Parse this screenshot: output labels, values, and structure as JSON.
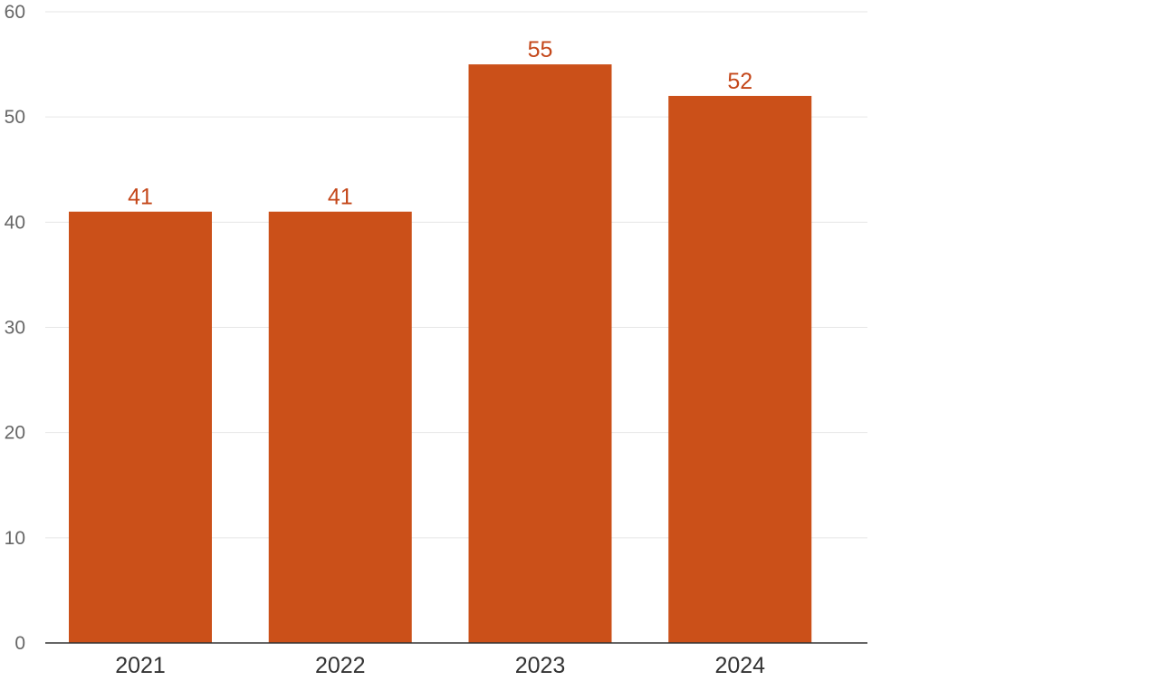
{
  "chart_data": {
    "type": "bar",
    "title": "",
    "xlabel": "",
    "ylabel": "",
    "categories": [
      "2021",
      "2022",
      "2023",
      "2024"
    ],
    "values": [
      41,
      41,
      55,
      52
    ],
    "data_labels": [
      "41",
      "41",
      "55",
      "52"
    ],
    "ylim": [
      0,
      60
    ],
    "yticks": [
      0,
      10,
      20,
      30,
      40,
      50,
      60
    ],
    "grid": true,
    "legend": "none",
    "bar_color": "#cb5019",
    "label_color": "#c4471a"
  }
}
